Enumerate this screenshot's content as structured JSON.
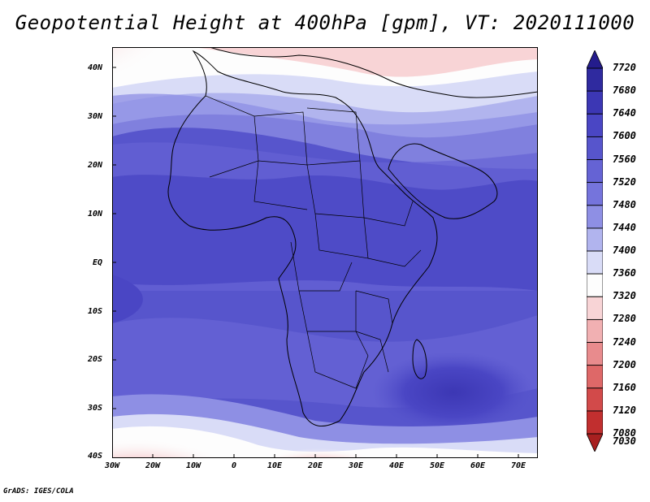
{
  "title": "Geopotential Height at 400hPa [gpm], VT: 2020111000",
  "credit": "GrADS: IGES/COLA",
  "map": {
    "lat_labels": [
      "40N",
      "30N",
      "20N",
      "10N",
      "EQ",
      "10S",
      "20S",
      "30S",
      "40S"
    ],
    "lon_labels": [
      "30W",
      "20W",
      "10W",
      "0",
      "10E",
      "20E",
      "30E",
      "40E",
      "50E",
      "60E",
      "70E"
    ]
  },
  "colorbar": {
    "levels": [
      "7720",
      "7680",
      "7640",
      "7600",
      "7560",
      "7520",
      "7480",
      "7440",
      "7400",
      "7360",
      "7320",
      "7280",
      "7240",
      "7200",
      "7160",
      "7120",
      "7080",
      "7030"
    ],
    "colors": [
      "#241c8c",
      "#2f2a9f",
      "#3c37b4",
      "#4a46c4",
      "#5755cc",
      "#6563d4",
      "#7574dc",
      "#8e8fe4",
      "#b1b4ee",
      "#d9dcf7",
      "#fdfdfd",
      "#f8d4d6",
      "#f1b0b2",
      "#e88b8d",
      "#de6868",
      "#d24a4a",
      "#c12f2f",
      "#a82020"
    ]
  },
  "chart_data": {
    "type": "heatmap",
    "title": "Geopotential Height at 400hPa [gpm], VT: 2020111000",
    "xlabel": "",
    "ylabel": "",
    "x_ticks": [
      "30W",
      "20W",
      "10W",
      "0",
      "10E",
      "20E",
      "30E",
      "40E",
      "50E",
      "60E",
      "70E"
    ],
    "y_ticks": [
      "40N",
      "30N",
      "20N",
      "10N",
      "EQ",
      "10S",
      "20S",
      "30S",
      "40S"
    ],
    "xlim": [
      -30,
      75
    ],
    "ylim": [
      -40,
      45
    ],
    "colorbar_levels": [
      7030,
      7080,
      7120,
      7160,
      7200,
      7240,
      7280,
      7320,
      7360,
      7400,
      7440,
      7480,
      7520,
      7560,
      7600,
      7640,
      7680,
      7720
    ]
  }
}
